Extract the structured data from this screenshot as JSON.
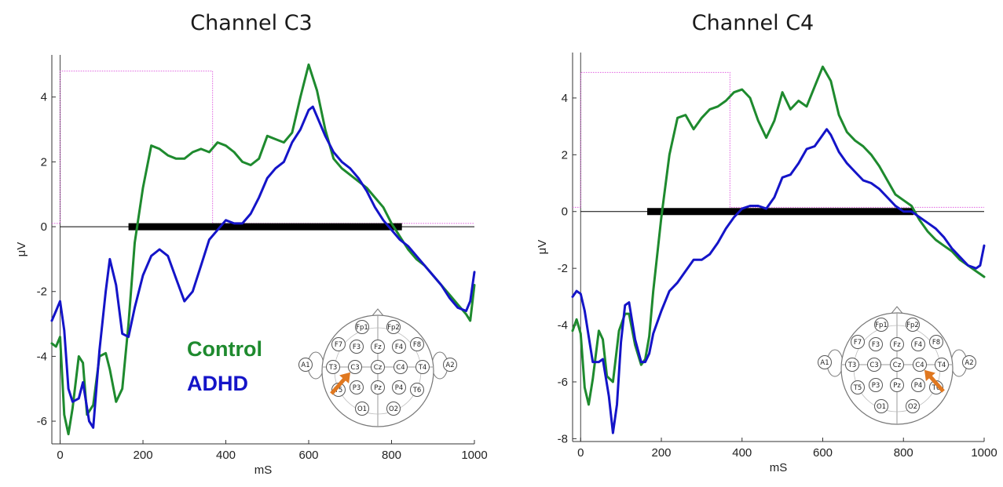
{
  "colors": {
    "control": "#1e8a2e",
    "adhd": "#1414c8",
    "stimulus": "#e060e0",
    "significance_bar": "#000000",
    "arrow": "#e07820"
  },
  "electrode_labels": [
    "Fp1",
    "Fp2",
    "F7",
    "F3",
    "Fz",
    "F4",
    "F8",
    "A1",
    "T3",
    "C3",
    "Cz",
    "C4",
    "T4",
    "A2",
    "T5",
    "P3",
    "Pz",
    "P4",
    "T6",
    "O1",
    "O2"
  ],
  "chart_data": [
    {
      "type": "line",
      "title": "Channel C3",
      "xlabel": "mS",
      "ylabel": "μV",
      "xlim": [
        -20,
        1000
      ],
      "ylim": [
        -6.7,
        5.3
      ],
      "xticks": [
        0,
        200,
        400,
        600,
        800,
        1000
      ],
      "yticks": [
        -6,
        -4,
        -2,
        0,
        2,
        4
      ],
      "grid": false,
      "legend_placement": "bottom-center",
      "highlighted_electrode": "C3",
      "significance_bar": {
        "x_start": 165,
        "x_end": 825,
        "y": 0
      },
      "stimulus_marker": {
        "x_on": 0,
        "x_off": 368,
        "high": 4.8,
        "low": 0.1
      },
      "series": [
        {
          "name": "Control",
          "x": [
            -20,
            -10,
            0,
            10,
            20,
            30,
            45,
            55,
            65,
            80,
            95,
            110,
            120,
            135,
            150,
            165,
            180,
            200,
            220,
            240,
            260,
            280,
            300,
            320,
            340,
            360,
            380,
            400,
            420,
            440,
            460,
            480,
            500,
            520,
            540,
            560,
            580,
            600,
            620,
            640,
            660,
            680,
            700,
            720,
            740,
            760,
            780,
            800,
            820,
            840,
            860,
            880,
            900,
            920,
            940,
            960,
            980,
            990,
            1000
          ],
          "y": [
            -3.6,
            -3.7,
            -3.4,
            -5.8,
            -6.4,
            -5.6,
            -4.0,
            -4.2,
            -5.8,
            -5.5,
            -4.0,
            -3.9,
            -4.4,
            -5.4,
            -5.0,
            -3.0,
            -0.5,
            1.2,
            2.5,
            2.4,
            2.2,
            2.1,
            2.1,
            2.3,
            2.4,
            2.3,
            2.6,
            2.5,
            2.3,
            2.0,
            1.9,
            2.1,
            2.8,
            2.7,
            2.6,
            2.9,
            4.0,
            5.0,
            4.2,
            3.0,
            2.1,
            1.8,
            1.6,
            1.4,
            1.2,
            0.9,
            0.6,
            0.1,
            -0.3,
            -0.7,
            -1.0,
            -1.2,
            -1.5,
            -1.8,
            -2.1,
            -2.4,
            -2.7,
            -2.9,
            -1.8
          ]
        },
        {
          "name": "ADHD",
          "x": [
            -20,
            -10,
            0,
            10,
            20,
            30,
            45,
            55,
            70,
            80,
            95,
            110,
            120,
            135,
            150,
            165,
            180,
            200,
            220,
            240,
            260,
            280,
            300,
            320,
            340,
            360,
            380,
            400,
            420,
            440,
            460,
            480,
            500,
            520,
            540,
            560,
            580,
            600,
            610,
            620,
            640,
            660,
            680,
            700,
            720,
            740,
            760,
            780,
            800,
            820,
            840,
            860,
            880,
            900,
            920,
            940,
            960,
            980,
            990,
            1000
          ],
          "y": [
            -2.9,
            -2.6,
            -2.3,
            -3.2,
            -5.0,
            -5.4,
            -5.3,
            -4.8,
            -6.0,
            -6.2,
            -3.8,
            -2.0,
            -1.0,
            -1.8,
            -3.3,
            -3.4,
            -2.5,
            -1.5,
            -0.9,
            -0.7,
            -0.9,
            -1.6,
            -2.3,
            -2.0,
            -1.2,
            -0.4,
            -0.1,
            0.2,
            0.1,
            0.1,
            0.4,
            0.9,
            1.5,
            1.8,
            2.0,
            2.6,
            3.0,
            3.6,
            3.7,
            3.4,
            2.8,
            2.3,
            2.0,
            1.8,
            1.5,
            1.1,
            0.6,
            0.2,
            -0.1,
            -0.4,
            -0.6,
            -0.9,
            -1.2,
            -1.5,
            -1.8,
            -2.2,
            -2.5,
            -2.6,
            -2.3,
            -1.4
          ]
        }
      ]
    },
    {
      "type": "line",
      "title": "Channel C4",
      "xlabel": "mS",
      "ylabel": "μV",
      "xlim": [
        -20,
        1000
      ],
      "ylim": [
        -8.1,
        5.6
      ],
      "xticks": [
        0,
        200,
        400,
        600,
        800,
        1000
      ],
      "yticks": [
        -8,
        -6,
        -4,
        -2,
        0,
        2,
        4
      ],
      "grid": false,
      "highlighted_electrode": "C4",
      "significance_bar": {
        "x_start": 165,
        "x_end": 825,
        "y": 0
      },
      "stimulus_marker": {
        "x_on": 0,
        "x_off": 370,
        "high": 4.9,
        "low": 0.15
      },
      "series": [
        {
          "name": "Control",
          "x": [
            -20,
            -10,
            0,
            10,
            20,
            30,
            45,
            55,
            65,
            80,
            95,
            110,
            120,
            135,
            150,
            160,
            170,
            180,
            200,
            220,
            240,
            260,
            280,
            300,
            320,
            340,
            360,
            380,
            400,
            420,
            440,
            460,
            480,
            500,
            520,
            540,
            560,
            580,
            600,
            620,
            640,
            660,
            680,
            700,
            720,
            740,
            760,
            780,
            800,
            820,
            840,
            860,
            880,
            900,
            920,
            940,
            960,
            980,
            990,
            1000
          ],
          "y": [
            -4.2,
            -3.8,
            -4.3,
            -6.2,
            -6.8,
            -5.9,
            -4.2,
            -4.5,
            -5.8,
            -6.0,
            -4.2,
            -3.6,
            -3.6,
            -4.7,
            -5.4,
            -5.2,
            -4.4,
            -2.8,
            -0.2,
            2.0,
            3.3,
            3.4,
            2.9,
            3.3,
            3.6,
            3.7,
            3.9,
            4.2,
            4.3,
            4.0,
            3.2,
            2.6,
            3.2,
            4.2,
            3.6,
            3.9,
            3.7,
            4.4,
            5.1,
            4.6,
            3.4,
            2.8,
            2.5,
            2.3,
            2.0,
            1.6,
            1.1,
            0.6,
            0.4,
            0.2,
            -0.3,
            -0.7,
            -1.0,
            -1.2,
            -1.4,
            -1.7,
            -1.9,
            -2.1,
            -2.2,
            -2.3
          ]
        },
        {
          "name": "ADHD",
          "x": [
            -20,
            -10,
            0,
            10,
            20,
            30,
            45,
            55,
            70,
            80,
            90,
            100,
            110,
            120,
            135,
            150,
            160,
            170,
            180,
            200,
            220,
            240,
            260,
            280,
            300,
            320,
            340,
            360,
            380,
            400,
            420,
            440,
            460,
            480,
            500,
            520,
            540,
            560,
            580,
            600,
            610,
            620,
            640,
            660,
            680,
            700,
            720,
            740,
            760,
            780,
            800,
            820,
            840,
            860,
            880,
            900,
            920,
            940,
            960,
            980,
            990,
            1000
          ],
          "y": [
            -3.0,
            -2.8,
            -2.9,
            -3.5,
            -4.4,
            -5.3,
            -5.3,
            -5.2,
            -6.5,
            -7.8,
            -6.8,
            -4.6,
            -3.3,
            -3.2,
            -4.5,
            -5.3,
            -5.3,
            -5.0,
            -4.3,
            -3.5,
            -2.8,
            -2.5,
            -2.1,
            -1.7,
            -1.7,
            -1.5,
            -1.1,
            -0.6,
            -0.2,
            0.1,
            0.2,
            0.2,
            0.1,
            0.5,
            1.2,
            1.3,
            1.7,
            2.2,
            2.3,
            2.7,
            2.9,
            2.7,
            2.1,
            1.7,
            1.4,
            1.1,
            1.0,
            0.8,
            0.5,
            0.2,
            0.0,
            0.0,
            -0.2,
            -0.4,
            -0.6,
            -0.9,
            -1.3,
            -1.6,
            -1.9,
            -2.0,
            -1.9,
            -1.2
          ]
        }
      ]
    }
  ]
}
